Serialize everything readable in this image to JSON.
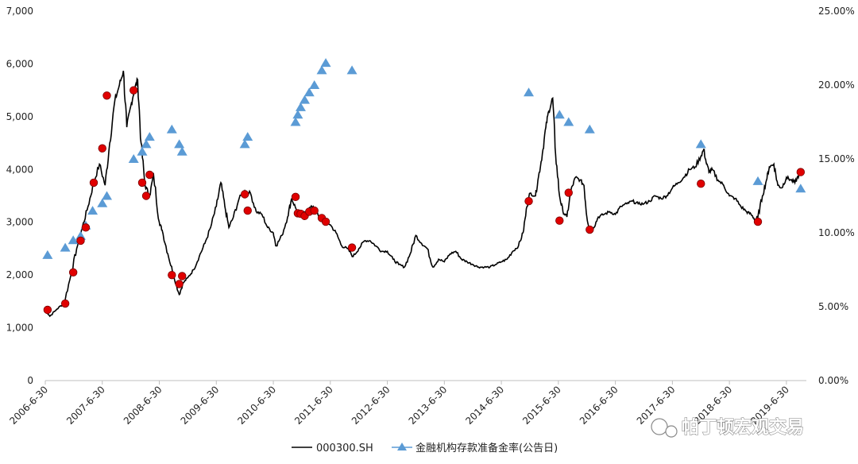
{
  "chart_data": {
    "type": "line",
    "title": "",
    "xlabel": "",
    "ylabel": "",
    "x_axis": {
      "tick_labels": [
        "2006-6-30",
        "2007-6-30",
        "2008-6-30",
        "2009-6-30",
        "2010-6-30",
        "2011-6-30",
        "2012-6-30",
        "2013-6-30",
        "2014-6-30",
        "2015-6-30",
        "2016-6-30",
        "2017-6-30",
        "2018-6-30",
        "2019-6-30"
      ],
      "range": [
        2006.5,
        2019.83
      ]
    },
    "y_left": {
      "ylim": [
        0,
        7000
      ],
      "tick_labels": [
        "0",
        "1,000",
        "2,000",
        "3,000",
        "4,000",
        "5,000",
        "6,000",
        "7,000"
      ],
      "tick_values": [
        0,
        1000,
        2000,
        3000,
        4000,
        5000,
        6000,
        7000
      ]
    },
    "y_right": {
      "ylim": [
        0,
        25
      ],
      "tick_labels": [
        "0.00%",
        "5.00%",
        "10.00%",
        "15.00%",
        "20.00%",
        "25.00%"
      ],
      "tick_values": [
        0,
        5,
        10,
        15,
        20,
        25
      ]
    },
    "series": [
      {
        "name": "000300.SH",
        "axis": "left",
        "style": "line",
        "color": "#000000",
        "points": [
          [
            2006.5,
            1350
          ],
          [
            2006.58,
            1220
          ],
          [
            2006.7,
            1350
          ],
          [
            2006.83,
            1470
          ],
          [
            2006.95,
            2000
          ],
          [
            2007.05,
            2500
          ],
          [
            2007.15,
            2900
          ],
          [
            2007.25,
            3300
          ],
          [
            2007.35,
            3750
          ],
          [
            2007.45,
            4100
          ],
          [
            2007.55,
            3700
          ],
          [
            2007.63,
            4500
          ],
          [
            2007.72,
            5300
          ],
          [
            2007.8,
            5600
          ],
          [
            2007.87,
            5870
          ],
          [
            2007.93,
            4800
          ],
          [
            2008.0,
            5200
          ],
          [
            2008.06,
            5500
          ],
          [
            2008.12,
            5700
          ],
          [
            2008.18,
            4500
          ],
          [
            2008.25,
            3700
          ],
          [
            2008.33,
            3500
          ],
          [
            2008.4,
            3900
          ],
          [
            2008.5,
            3000
          ],
          [
            2008.55,
            2850
          ],
          [
            2008.65,
            2400
          ],
          [
            2008.75,
            2000
          ],
          [
            2008.85,
            1630
          ],
          [
            2008.92,
            1850
          ],
          [
            2009.0,
            1950
          ],
          [
            2009.1,
            2100
          ],
          [
            2009.2,
            2350
          ],
          [
            2009.3,
            2600
          ],
          [
            2009.4,
            2900
          ],
          [
            2009.5,
            3300
          ],
          [
            2009.58,
            3750
          ],
          [
            2009.65,
            3300
          ],
          [
            2009.72,
            2900
          ],
          [
            2009.8,
            3100
          ],
          [
            2009.9,
            3450
          ],
          [
            2010.0,
            3600
          ],
          [
            2010.1,
            3550
          ],
          [
            2010.2,
            3200
          ],
          [
            2010.3,
            3150
          ],
          [
            2010.4,
            2900
          ],
          [
            2010.5,
            2800
          ],
          [
            2010.55,
            2550
          ],
          [
            2010.65,
            2750
          ],
          [
            2010.75,
            3100
          ],
          [
            2010.82,
            3450
          ],
          [
            2010.9,
            3250
          ],
          [
            2011.0,
            3150
          ],
          [
            2011.1,
            3250
          ],
          [
            2011.2,
            3300
          ],
          [
            2011.3,
            3100
          ],
          [
            2011.4,
            3050
          ],
          [
            2011.5,
            2950
          ],
          [
            2011.6,
            2800
          ],
          [
            2011.7,
            2550
          ],
          [
            2011.8,
            2500
          ],
          [
            2011.9,
            2350
          ],
          [
            2012.0,
            2500
          ],
          [
            2012.1,
            2650
          ],
          [
            2012.2,
            2650
          ],
          [
            2012.3,
            2550
          ],
          [
            2012.4,
            2450
          ],
          [
            2012.5,
            2450
          ],
          [
            2012.6,
            2300
          ],
          [
            2012.7,
            2200
          ],
          [
            2012.8,
            2150
          ],
          [
            2012.9,
            2400
          ],
          [
            2013.0,
            2750
          ],
          [
            2013.1,
            2600
          ],
          [
            2013.2,
            2500
          ],
          [
            2013.3,
            2150
          ],
          [
            2013.4,
            2300
          ],
          [
            2013.5,
            2250
          ],
          [
            2013.6,
            2400
          ],
          [
            2013.7,
            2450
          ],
          [
            2013.8,
            2300
          ],
          [
            2013.9,
            2250
          ],
          [
            2014.0,
            2200
          ],
          [
            2014.1,
            2150
          ],
          [
            2014.2,
            2150
          ],
          [
            2014.3,
            2150
          ],
          [
            2014.4,
            2200
          ],
          [
            2014.5,
            2250
          ],
          [
            2014.6,
            2300
          ],
          [
            2014.7,
            2450
          ],
          [
            2014.8,
            2550
          ],
          [
            2014.88,
            2800
          ],
          [
            2014.95,
            3300
          ],
          [
            2015.0,
            3550
          ],
          [
            2015.1,
            3500
          ],
          [
            2015.15,
            3850
          ],
          [
            2015.22,
            4300
          ],
          [
            2015.28,
            4800
          ],
          [
            2015.33,
            5100
          ],
          [
            2015.4,
            5350
          ],
          [
            2015.45,
            4300
          ],
          [
            2015.52,
            3500
          ],
          [
            2015.58,
            3200
          ],
          [
            2015.65,
            3100
          ],
          [
            2015.72,
            3600
          ],
          [
            2015.8,
            3850
          ],
          [
            2015.88,
            3800
          ],
          [
            2015.95,
            3700
          ],
          [
            2016.0,
            3100
          ],
          [
            2016.05,
            2850
          ],
          [
            2016.12,
            2900
          ],
          [
            2016.2,
            3100
          ],
          [
            2016.3,
            3150
          ],
          [
            2016.4,
            3200
          ],
          [
            2016.5,
            3150
          ],
          [
            2016.6,
            3300
          ],
          [
            2016.7,
            3350
          ],
          [
            2016.8,
            3400
          ],
          [
            2016.9,
            3350
          ],
          [
            2017.0,
            3350
          ],
          [
            2017.1,
            3400
          ],
          [
            2017.2,
            3500
          ],
          [
            2017.3,
            3450
          ],
          [
            2017.4,
            3500
          ],
          [
            2017.5,
            3650
          ],
          [
            2017.6,
            3750
          ],
          [
            2017.7,
            3850
          ],
          [
            2017.8,
            4000
          ],
          [
            2017.9,
            4050
          ],
          [
            2018.0,
            4250
          ],
          [
            2018.05,
            4380
          ],
          [
            2018.1,
            4100
          ],
          [
            2018.15,
            3950
          ],
          [
            2018.2,
            4000
          ],
          [
            2018.3,
            3800
          ],
          [
            2018.4,
            3700
          ],
          [
            2018.5,
            3500
          ],
          [
            2018.6,
            3450
          ],
          [
            2018.7,
            3300
          ],
          [
            2018.8,
            3200
          ],
          [
            2018.88,
            3150
          ],
          [
            2018.95,
            3050
          ],
          [
            2019.0,
            3100
          ],
          [
            2019.08,
            3500
          ],
          [
            2019.15,
            3800
          ],
          [
            2019.2,
            4050
          ],
          [
            2019.28,
            4100
          ],
          [
            2019.35,
            3700
          ],
          [
            2019.42,
            3650
          ],
          [
            2019.5,
            3850
          ],
          [
            2019.58,
            3800
          ],
          [
            2019.65,
            3750
          ],
          [
            2019.72,
            3900
          ],
          [
            2019.78,
            3950
          ]
        ]
      },
      {
        "name": "金融机构存款准备金率(公告日)",
        "axis": "right",
        "style": "triangle",
        "color": "#5b9bd5",
        "points": [
          [
            2006.54,
            8.5
          ],
          [
            2006.85,
            9.0
          ],
          [
            2006.99,
            9.5
          ],
          [
            2007.12,
            9.8
          ],
          [
            2007.21,
            10.5
          ],
          [
            2007.33,
            11.5
          ],
          [
            2007.5,
            12.0
          ],
          [
            2007.58,
            12.5
          ],
          [
            2008.05,
            15.0
          ],
          [
            2008.2,
            15.5
          ],
          [
            2008.27,
            16.0
          ],
          [
            2008.33,
            16.5
          ],
          [
            2008.72,
            17.0
          ],
          [
            2008.85,
            16.0
          ],
          [
            2008.9,
            15.5
          ],
          [
            2010.0,
            16.0
          ],
          [
            2010.05,
            16.5
          ],
          [
            2010.89,
            17.5
          ],
          [
            2010.93,
            18.0
          ],
          [
            2010.98,
            18.5
          ],
          [
            2011.05,
            19.0
          ],
          [
            2011.13,
            19.5
          ],
          [
            2011.22,
            20.0
          ],
          [
            2011.35,
            21.0
          ],
          [
            2011.42,
            21.5
          ],
          [
            2011.88,
            21.0
          ],
          [
            2014.98,
            19.5
          ],
          [
            2015.52,
            18.0
          ],
          [
            2015.68,
            17.5
          ],
          [
            2016.05,
            17.0
          ],
          [
            2018.0,
            16.0
          ],
          [
            2019.0,
            13.5
          ],
          [
            2019.75,
            13.0
          ]
        ]
      },
      {
        "name": "",
        "axis": "left",
        "style": "marker",
        "color": "#e00000",
        "points": [
          [
            2006.54,
            1340
          ],
          [
            2006.85,
            1460
          ],
          [
            2006.99,
            2050
          ],
          [
            2007.12,
            2650
          ],
          [
            2007.21,
            2900
          ],
          [
            2007.35,
            3750
          ],
          [
            2007.5,
            4400
          ],
          [
            2007.58,
            5400
          ],
          [
            2008.05,
            5500
          ],
          [
            2008.2,
            3750
          ],
          [
            2008.27,
            3500
          ],
          [
            2008.33,
            3900
          ],
          [
            2008.72,
            2000
          ],
          [
            2008.85,
            1830
          ],
          [
            2008.9,
            1980
          ],
          [
            2010.0,
            3530
          ],
          [
            2010.05,
            3220
          ],
          [
            2010.89,
            3480
          ],
          [
            2010.93,
            3170
          ],
          [
            2010.98,
            3160
          ],
          [
            2011.05,
            3120
          ],
          [
            2011.13,
            3200
          ],
          [
            2011.22,
            3220
          ],
          [
            2011.35,
            3080
          ],
          [
            2011.42,
            3010
          ],
          [
            2011.88,
            2520
          ],
          [
            2014.98,
            3400
          ],
          [
            2015.52,
            3030
          ],
          [
            2015.68,
            3560
          ],
          [
            2016.05,
            2860
          ],
          [
            2018.0,
            3730
          ],
          [
            2019.0,
            3010
          ],
          [
            2019.75,
            3950
          ]
        ]
      }
    ],
    "legend": {
      "placement": "bottom-center",
      "entries": [
        "000300.SH",
        "金融机构存款准备金率(公告日)"
      ]
    },
    "grid": false,
    "watermark": "帕丁顿宏观交易"
  }
}
